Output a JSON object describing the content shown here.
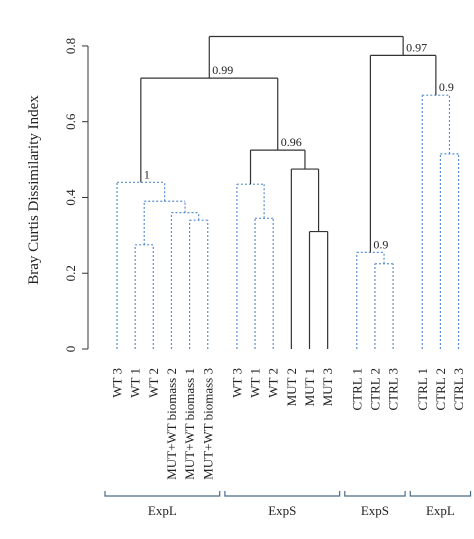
{
  "chart_data": {
    "type": "dendrogram",
    "ylabel": "Bray Curtis Dissimilarity Index",
    "ylim": [
      0,
      0.85
    ],
    "yticks": [
      {
        "value": 0,
        "label": "0"
      },
      {
        "value": 0.2,
        "label": "0.2"
      },
      {
        "value": 0.4,
        "label": "0.4"
      },
      {
        "value": 0.6,
        "label": "0.6"
      },
      {
        "value": 0.8,
        "label": "0.8"
      }
    ],
    "leaves": [
      "WT 3",
      "WT 1",
      "WT 2",
      "MUT+WT biomass 2",
      "MUT+WT biomass 1",
      "MUT+WT biomass 3",
      "WT 3",
      "WT 1",
      "WT 2",
      "MUT 2",
      "MUT 1",
      "MUT 3",
      "CTRL 1",
      "CTRL 2",
      "CTRL 3",
      "CTRL 1",
      "CTRL 2",
      "CTRL 3"
    ],
    "merges": [
      {
        "id": "m1",
        "left": 1,
        "right": 2,
        "height": 0.275
      },
      {
        "id": "m2",
        "left": 4,
        "right": 5,
        "height": 0.34
      },
      {
        "id": "m3",
        "left": 3,
        "right": "m2",
        "height": 0.36
      },
      {
        "id": "m4",
        "left": "m1",
        "right": "m3",
        "height": 0.39
      },
      {
        "id": "m5",
        "left": 0,
        "right": "m4",
        "height": 0.44,
        "label": "1"
      },
      {
        "id": "m6",
        "left": 7,
        "right": 8,
        "height": 0.345
      },
      {
        "id": "m7",
        "left": 6,
        "right": "m6",
        "height": 0.435
      },
      {
        "id": "m8",
        "left": 10,
        "right": 11,
        "height": 0.31
      },
      {
        "id": "m9",
        "left": 9,
        "right": "m8",
        "height": 0.475
      },
      {
        "id": "m10",
        "left": "m7",
        "right": "m9",
        "height": 0.525,
        "label": "0.96"
      },
      {
        "id": "m11",
        "left": "m5",
        "right": "m10",
        "height": 0.715,
        "label": "0.99"
      },
      {
        "id": "m12",
        "left": 13,
        "right": 14,
        "height": 0.225
      },
      {
        "id": "m13",
        "left": 12,
        "right": "m12",
        "height": 0.255,
        "label": "0.9"
      },
      {
        "id": "m14",
        "left": 16,
        "right": 17,
        "height": 0.515
      },
      {
        "id": "m15",
        "left": 15,
        "right": "m14",
        "height": 0.67,
        "label": "0.9"
      },
      {
        "id": "m16",
        "left": "m13",
        "right": "m15",
        "height": 0.775,
        "label": "0.97"
      },
      {
        "id": "m17",
        "left": "m11",
        "right": "m16",
        "height": 0.825
      }
    ],
    "groups": [
      {
        "label": "ExpL",
        "first": 0,
        "last": 5
      },
      {
        "label": "ExpS",
        "first": 6,
        "last": 11
      },
      {
        "label": "ExpS",
        "first": 12,
        "last": 14
      },
      {
        "label": "ExpL",
        "first": 15,
        "last": 17
      }
    ],
    "colors": {
      "dotted": "#5b8fcf",
      "solid": "#333333",
      "bracket": "#4a6b8a"
    }
  }
}
